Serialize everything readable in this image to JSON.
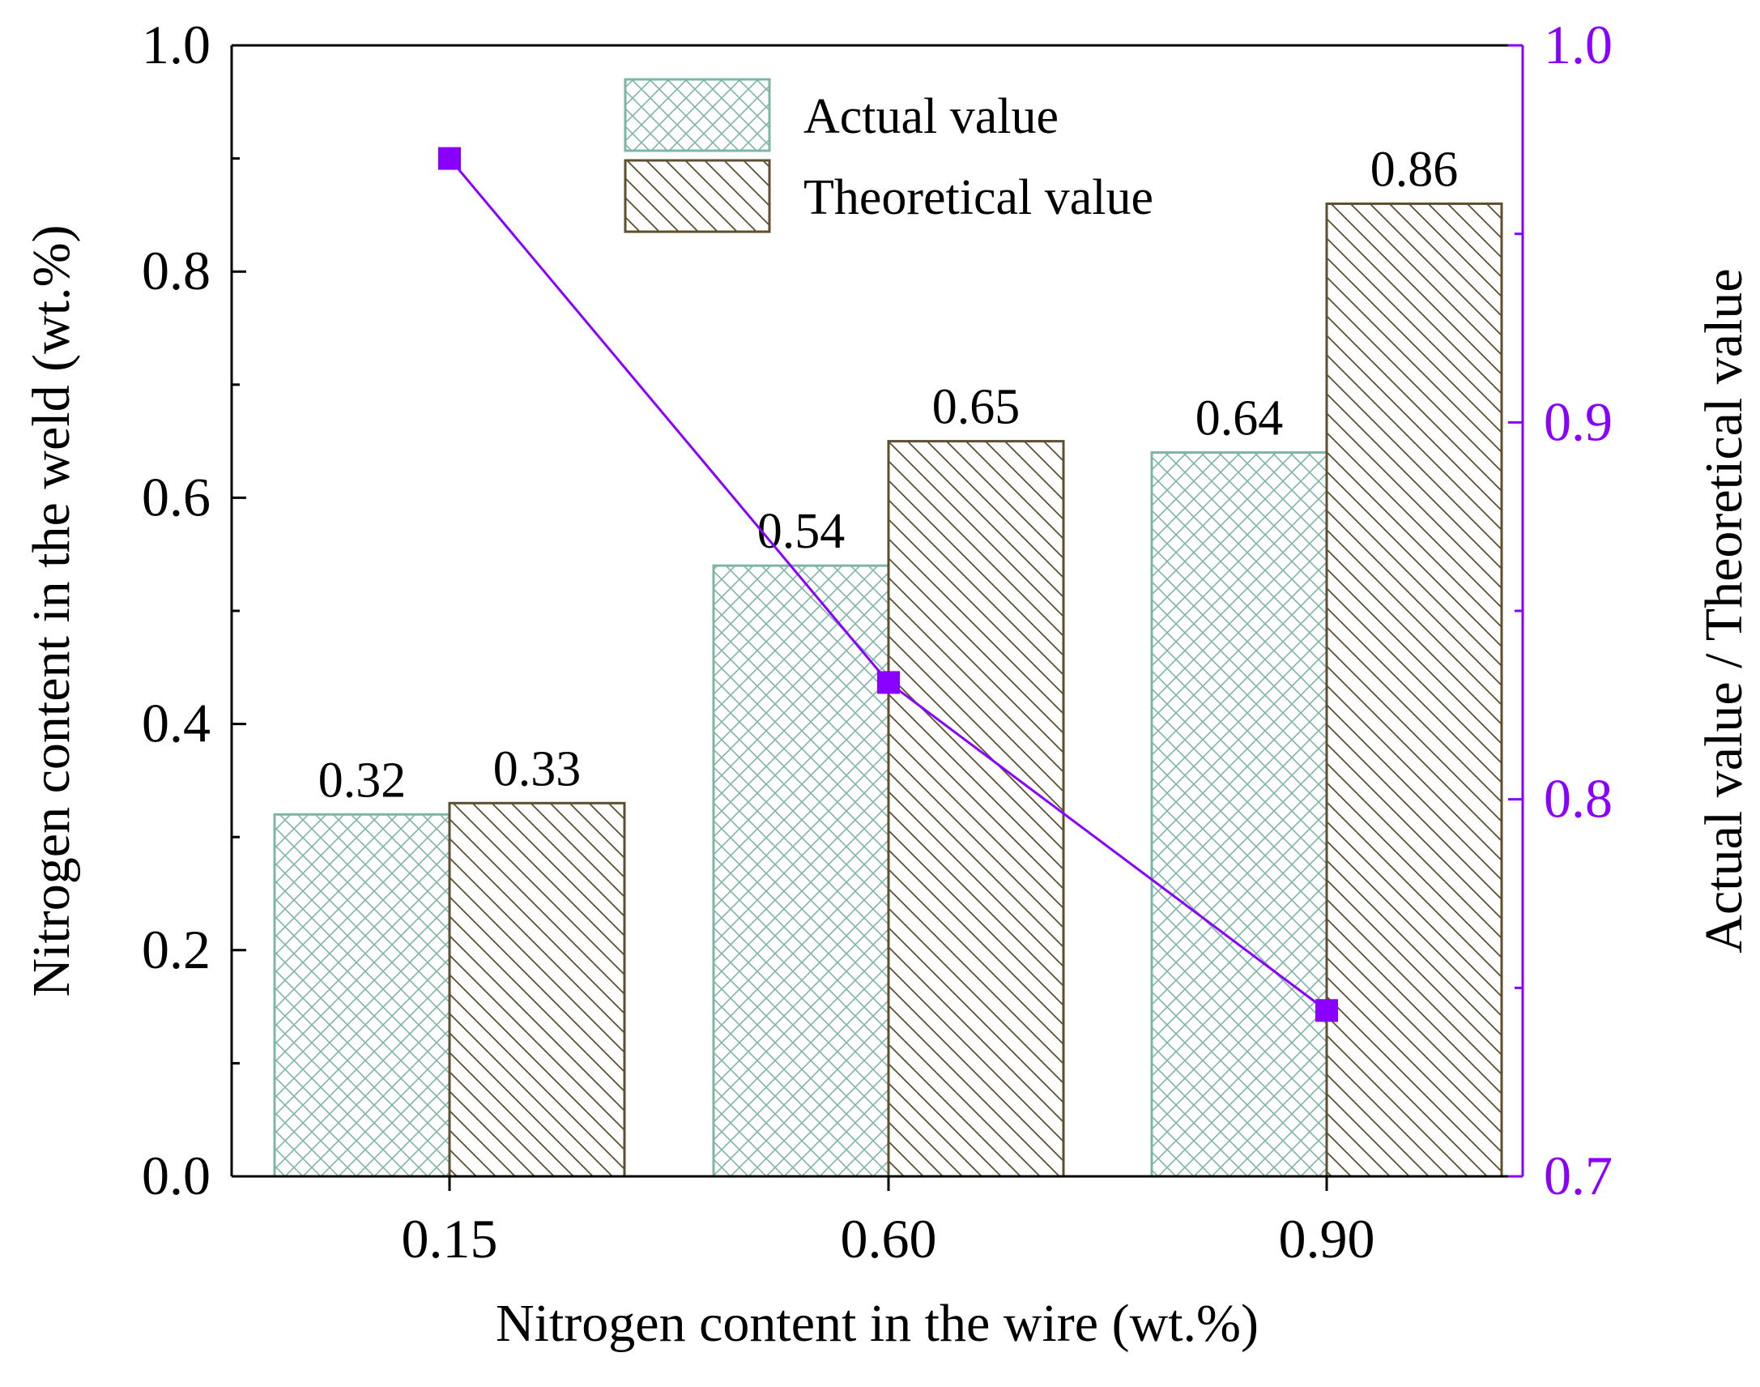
{
  "colors": {
    "actual_stroke": "#7fb5a8",
    "theoretical_stroke": "#5e4f2e",
    "ratio": "#8a00ff",
    "axis": "#000000"
  },
  "chart_data": {
    "type": "bar",
    "xlabel": "Nitrogen content in the wire (wt.%)",
    "ylabel": "Nitrogen content in the weld (wt.%)",
    "y2label": "Actual value / Theoretical value",
    "categories": [
      "0.15",
      "0.60",
      "0.90"
    ],
    "ylim": [
      0,
      1.0
    ],
    "yticks": [
      "0.0",
      "0.2",
      "0.4",
      "0.6",
      "0.8",
      "1.0"
    ],
    "y2lim": [
      0.7,
      1.0
    ],
    "y2ticks": [
      "0.7",
      "0.8",
      "0.9",
      "1.0"
    ],
    "series": [
      {
        "name": "Actual value",
        "values": [
          0.32,
          0.54,
          0.64
        ],
        "labels": [
          "0.32",
          "0.54",
          "0.64"
        ],
        "pattern": "crosshatch"
      },
      {
        "name": "Theoretical value",
        "values": [
          0.33,
          0.65,
          0.86
        ],
        "labels": [
          "0.33",
          "0.65",
          "0.86"
        ],
        "pattern": "diagonal"
      }
    ],
    "line_series": {
      "name": "Actual value / Theoretical value",
      "axis": "right",
      "values": [
        0.97,
        0.831,
        0.744
      ]
    },
    "legend": {
      "position": "top-center",
      "entries": [
        "Actual value",
        "Theoretical value"
      ]
    }
  }
}
